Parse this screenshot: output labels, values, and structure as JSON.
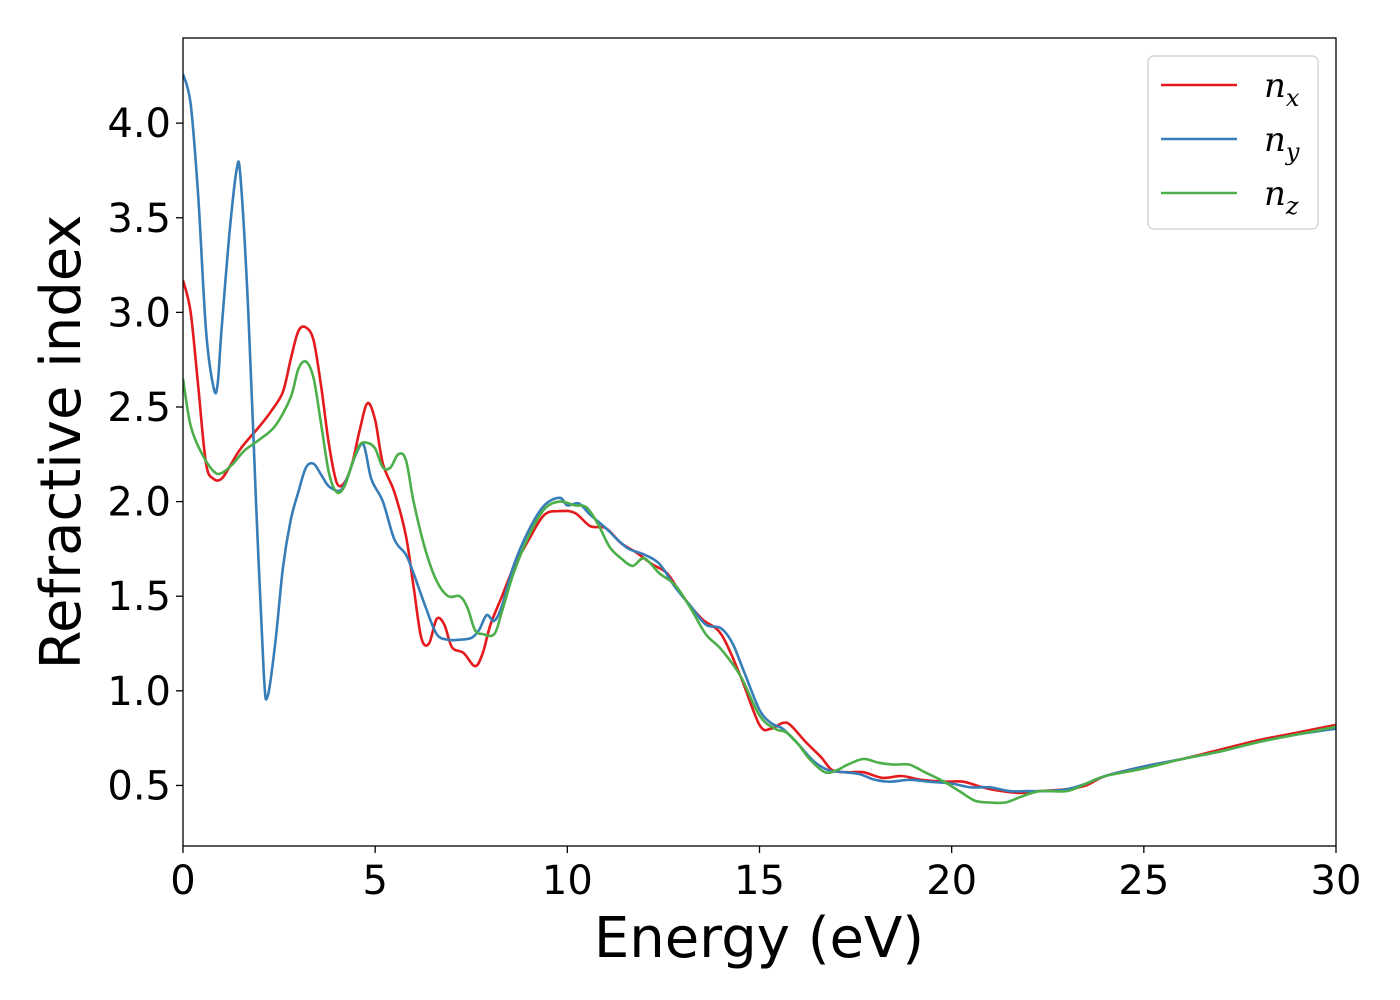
{
  "chart_data": {
    "type": "line",
    "xlabel": "Energy (eV)",
    "ylabel": "Refractive index",
    "xlim": [
      0,
      30
    ],
    "ylim": [
      0.18,
      4.45
    ],
    "xticks": [
      0,
      5,
      10,
      15,
      20,
      25,
      30
    ],
    "xtick_labels": [
      "0",
      "5",
      "10",
      "15",
      "20",
      "25",
      "30"
    ],
    "yticks": [
      0.5,
      1.0,
      1.5,
      2.0,
      2.5,
      3.0,
      3.5,
      4.0
    ],
    "ytick_labels": [
      "0.5",
      "1.0",
      "1.5",
      "2.0",
      "2.5",
      "3.0",
      "3.5",
      "4.0"
    ],
    "grid": false,
    "legend_position": "top-right",
    "series": [
      {
        "name": "n_x",
        "label_base": "n",
        "label_sub": "x",
        "color": "#e41a1c",
        "points": [
          [
            0,
            3.17
          ],
          [
            0.2,
            3.0
          ],
          [
            0.4,
            2.6
          ],
          [
            0.6,
            2.2
          ],
          [
            0.8,
            2.12
          ],
          [
            1.0,
            2.12
          ],
          [
            1.2,
            2.18
          ],
          [
            1.5,
            2.28
          ],
          [
            2.0,
            2.4
          ],
          [
            2.3,
            2.48
          ],
          [
            2.6,
            2.58
          ],
          [
            2.8,
            2.75
          ],
          [
            3.0,
            2.9
          ],
          [
            3.2,
            2.92
          ],
          [
            3.4,
            2.85
          ],
          [
            3.6,
            2.6
          ],
          [
            3.8,
            2.3
          ],
          [
            4.0,
            2.1
          ],
          [
            4.2,
            2.1
          ],
          [
            4.4,
            2.2
          ],
          [
            4.6,
            2.38
          ],
          [
            4.8,
            2.52
          ],
          [
            5.0,
            2.43
          ],
          [
            5.2,
            2.2
          ],
          [
            5.5,
            2.05
          ],
          [
            5.8,
            1.82
          ],
          [
            6.0,
            1.55
          ],
          [
            6.2,
            1.28
          ],
          [
            6.4,
            1.25
          ],
          [
            6.6,
            1.38
          ],
          [
            6.8,
            1.35
          ],
          [
            7.0,
            1.23
          ],
          [
            7.3,
            1.2
          ],
          [
            7.6,
            1.13
          ],
          [
            7.8,
            1.2
          ],
          [
            8.0,
            1.35
          ],
          [
            8.3,
            1.5
          ],
          [
            8.6,
            1.65
          ],
          [
            9.0,
            1.8
          ],
          [
            9.4,
            1.93
          ],
          [
            9.8,
            1.95
          ],
          [
            10.2,
            1.94
          ],
          [
            10.6,
            1.87
          ],
          [
            11.0,
            1.86
          ],
          [
            11.4,
            1.78
          ],
          [
            11.8,
            1.73
          ],
          [
            12.2,
            1.67
          ],
          [
            12.6,
            1.62
          ],
          [
            13.0,
            1.5
          ],
          [
            13.5,
            1.38
          ],
          [
            14.0,
            1.3
          ],
          [
            14.5,
            1.08
          ],
          [
            15.0,
            0.82
          ],
          [
            15.3,
            0.8
          ],
          [
            15.6,
            0.83
          ],
          [
            15.8,
            0.82
          ],
          [
            16.2,
            0.73
          ],
          [
            16.6,
            0.65
          ],
          [
            16.9,
            0.58
          ],
          [
            17.3,
            0.57
          ],
          [
            17.7,
            0.57
          ],
          [
            18.2,
            0.54
          ],
          [
            18.7,
            0.55
          ],
          [
            19.2,
            0.53
          ],
          [
            19.8,
            0.52
          ],
          [
            20.3,
            0.52
          ],
          [
            20.8,
            0.49
          ],
          [
            21.3,
            0.47
          ],
          [
            21.8,
            0.46
          ],
          [
            22.3,
            0.47
          ],
          [
            23.0,
            0.48
          ],
          [
            23.5,
            0.5
          ],
          [
            24.0,
            0.55
          ],
          [
            25.0,
            0.6
          ],
          [
            26.0,
            0.64
          ],
          [
            27.0,
            0.69
          ],
          [
            28.0,
            0.74
          ],
          [
            29.0,
            0.78
          ],
          [
            30.0,
            0.82
          ]
        ]
      },
      {
        "name": "n_y",
        "label_base": "n",
        "label_sub": "y",
        "color": "#377eb8",
        "points": [
          [
            0,
            4.26
          ],
          [
            0.2,
            4.1
          ],
          [
            0.4,
            3.6
          ],
          [
            0.6,
            2.9
          ],
          [
            0.8,
            2.6
          ],
          [
            0.9,
            2.62
          ],
          [
            1.0,
            2.9
          ],
          [
            1.2,
            3.4
          ],
          [
            1.4,
            3.76
          ],
          [
            1.5,
            3.7
          ],
          [
            1.7,
            3.0
          ],
          [
            1.9,
            2.0
          ],
          [
            2.1,
            1.1
          ],
          [
            2.2,
            0.97
          ],
          [
            2.4,
            1.25
          ],
          [
            2.6,
            1.65
          ],
          [
            2.8,
            1.9
          ],
          [
            3.0,
            2.05
          ],
          [
            3.2,
            2.18
          ],
          [
            3.4,
            2.2
          ],
          [
            3.6,
            2.14
          ],
          [
            3.8,
            2.08
          ],
          [
            4.1,
            2.06
          ],
          [
            4.3,
            2.14
          ],
          [
            4.5,
            2.25
          ],
          [
            4.7,
            2.3
          ],
          [
            4.9,
            2.12
          ],
          [
            5.2,
            2.0
          ],
          [
            5.5,
            1.8
          ],
          [
            5.8,
            1.72
          ],
          [
            6.0,
            1.62
          ],
          [
            6.3,
            1.45
          ],
          [
            6.6,
            1.3
          ],
          [
            6.9,
            1.27
          ],
          [
            7.2,
            1.27
          ],
          [
            7.5,
            1.28
          ],
          [
            7.7,
            1.32
          ],
          [
            7.9,
            1.4
          ],
          [
            8.1,
            1.37
          ],
          [
            8.3,
            1.45
          ],
          [
            8.6,
            1.66
          ],
          [
            9.0,
            1.85
          ],
          [
            9.4,
            1.98
          ],
          [
            9.8,
            2.02
          ],
          [
            10.0,
            1.98
          ],
          [
            10.3,
            1.99
          ],
          [
            10.6,
            1.93
          ],
          [
            11.0,
            1.86
          ],
          [
            11.3,
            1.8
          ],
          [
            11.6,
            1.75
          ],
          [
            12.0,
            1.72
          ],
          [
            12.4,
            1.67
          ],
          [
            12.8,
            1.55
          ],
          [
            13.2,
            1.45
          ],
          [
            13.6,
            1.35
          ],
          [
            14.0,
            1.33
          ],
          [
            14.3,
            1.25
          ],
          [
            14.6,
            1.1
          ],
          [
            15.0,
            0.9
          ],
          [
            15.3,
            0.83
          ],
          [
            15.6,
            0.8
          ],
          [
            16.0,
            0.72
          ],
          [
            16.4,
            0.63
          ],
          [
            16.8,
            0.58
          ],
          [
            17.2,
            0.57
          ],
          [
            17.6,
            0.56
          ],
          [
            18.0,
            0.53
          ],
          [
            18.4,
            0.52
          ],
          [
            18.9,
            0.53
          ],
          [
            19.4,
            0.52
          ],
          [
            20.0,
            0.51
          ],
          [
            20.5,
            0.49
          ],
          [
            21.0,
            0.49
          ],
          [
            21.5,
            0.47
          ],
          [
            22.0,
            0.47
          ],
          [
            22.5,
            0.47
          ],
          [
            23.0,
            0.48
          ],
          [
            23.5,
            0.51
          ],
          [
            24.0,
            0.55
          ],
          [
            25.0,
            0.6
          ],
          [
            26.0,
            0.64
          ],
          [
            27.0,
            0.68
          ],
          [
            28.0,
            0.73
          ],
          [
            29.0,
            0.77
          ],
          [
            30.0,
            0.8
          ]
        ]
      },
      {
        "name": "n_z",
        "label_base": "n",
        "label_sub": "z",
        "color": "#4daf4a",
        "points": [
          [
            0,
            2.65
          ],
          [
            0.2,
            2.4
          ],
          [
            0.5,
            2.25
          ],
          [
            0.8,
            2.16
          ],
          [
            1.0,
            2.15
          ],
          [
            1.3,
            2.2
          ],
          [
            1.6,
            2.27
          ],
          [
            2.0,
            2.33
          ],
          [
            2.4,
            2.4
          ],
          [
            2.8,
            2.55
          ],
          [
            3.0,
            2.7
          ],
          [
            3.2,
            2.74
          ],
          [
            3.4,
            2.65
          ],
          [
            3.6,
            2.4
          ],
          [
            3.8,
            2.15
          ],
          [
            4.0,
            2.05
          ],
          [
            4.2,
            2.08
          ],
          [
            4.4,
            2.2
          ],
          [
            4.6,
            2.3
          ],
          [
            4.8,
            2.31
          ],
          [
            5.0,
            2.28
          ],
          [
            5.2,
            2.18
          ],
          [
            5.4,
            2.18
          ],
          [
            5.6,
            2.25
          ],
          [
            5.8,
            2.22
          ],
          [
            6.0,
            2.0
          ],
          [
            6.3,
            1.75
          ],
          [
            6.6,
            1.58
          ],
          [
            6.9,
            1.5
          ],
          [
            7.2,
            1.5
          ],
          [
            7.4,
            1.44
          ],
          [
            7.6,
            1.32
          ],
          [
            7.8,
            1.3
          ],
          [
            8.1,
            1.3
          ],
          [
            8.3,
            1.42
          ],
          [
            8.6,
            1.62
          ],
          [
            9.0,
            1.82
          ],
          [
            9.4,
            1.96
          ],
          [
            9.8,
            2.0
          ],
          [
            10.2,
            1.98
          ],
          [
            10.5,
            1.97
          ],
          [
            10.8,
            1.88
          ],
          [
            11.1,
            1.76
          ],
          [
            11.4,
            1.7
          ],
          [
            11.7,
            1.66
          ],
          [
            12.0,
            1.7
          ],
          [
            12.4,
            1.62
          ],
          [
            12.8,
            1.56
          ],
          [
            13.2,
            1.44
          ],
          [
            13.6,
            1.3
          ],
          [
            14.0,
            1.22
          ],
          [
            14.5,
            1.08
          ],
          [
            15.0,
            0.87
          ],
          [
            15.4,
            0.8
          ],
          [
            15.7,
            0.78
          ],
          [
            16.0,
            0.72
          ],
          [
            16.3,
            0.64
          ],
          [
            16.7,
            0.57
          ],
          [
            17.0,
            0.58
          ],
          [
            17.3,
            0.61
          ],
          [
            17.7,
            0.64
          ],
          [
            18.1,
            0.62
          ],
          [
            18.5,
            0.61
          ],
          [
            18.9,
            0.61
          ],
          [
            19.3,
            0.57
          ],
          [
            19.8,
            0.52
          ],
          [
            20.2,
            0.47
          ],
          [
            20.6,
            0.42
          ],
          [
            21.0,
            0.41
          ],
          [
            21.4,
            0.41
          ],
          [
            21.8,
            0.44
          ],
          [
            22.3,
            0.47
          ],
          [
            23.0,
            0.47
          ],
          [
            23.5,
            0.51
          ],
          [
            24.0,
            0.55
          ],
          [
            25.0,
            0.59
          ],
          [
            26.0,
            0.64
          ],
          [
            27.0,
            0.68
          ],
          [
            28.0,
            0.73
          ],
          [
            29.0,
            0.77
          ],
          [
            30.0,
            0.81
          ]
        ]
      }
    ]
  }
}
